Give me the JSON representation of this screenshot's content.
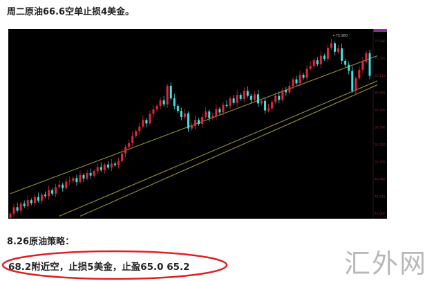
{
  "article": {
    "title": "周二原油66.6空单止损4美金。",
    "subtitle": "8.26原油策略：",
    "strategy": "68.2附近空，止损5美金，止盈65.0 65.2",
    "watermark": "汇外网"
  },
  "colors": {
    "background": "#000000",
    "up": "#e0283c",
    "down": "#3fe3e3",
    "trendline": "#8c8a2e",
    "axis_text": "#8a2040",
    "highlight": "#e02020"
  },
  "chart_data": {
    "type": "candlestick",
    "ylim": [
      40.0,
      77.5
    ],
    "yticks": [
      "75.980",
      "72.535",
      "69.110",
      "65.685",
      "62.260",
      "58.790",
      "55.320",
      "51.900",
      "48.440",
      "45.015",
      "41.600"
    ],
    "ytick_values": [
      75.98,
      72.535,
      69.11,
      65.685,
      62.26,
      58.79,
      55.32,
      51.9,
      48.44,
      45.015,
      41.6
    ],
    "peak_annotation": "75.980",
    "closes": [
      41.5,
      42.8,
      42.1,
      43.5,
      43.0,
      44.2,
      43.6,
      44.8,
      44.1,
      45.3,
      45.0,
      46.2,
      45.5,
      46.8,
      47.3,
      46.6,
      47.9,
      48.0,
      48.6,
      47.8,
      49.2,
      48.5,
      49.6,
      49.1,
      50.0,
      50.8,
      50.2,
      51.3,
      50.7,
      51.5,
      51.2,
      52.0,
      53.5,
      54.8,
      55.6,
      57.0,
      58.0,
      58.9,
      60.2,
      59.5,
      61.4,
      62.3,
      63.0,
      64.1,
      63.3,
      67.0,
      64.5,
      63.0,
      62.0,
      60.8,
      61.5,
      58.5,
      59.0,
      60.2,
      59.4,
      60.8,
      61.9,
      60.6,
      61.0,
      62.4,
      61.7,
      63.2,
      63.0,
      64.5,
      63.6,
      65.2,
      64.4,
      66.0,
      65.0,
      64.2,
      65.3,
      63.5,
      64.0,
      62.1,
      62.5,
      63.8,
      65.0,
      64.2,
      66.1,
      65.7,
      67.0,
      68.3,
      67.5,
      69.2,
      68.6,
      70.4,
      71.0,
      72.1,
      71.3,
      73.0,
      72.4,
      74.6,
      75.5,
      73.8,
      74.5,
      72.0,
      71.2,
      70.0,
      66.0,
      68.5,
      70.2,
      71.8,
      73.5,
      69.0
    ],
    "trendlines": [
      {
        "from": [
          0,
          45.5
        ],
        "to": [
          104,
          73.0
        ]
      },
      {
        "from": [
          14,
          41.0
        ],
        "to": [
          104,
          68.0
        ]
      },
      {
        "from": [
          20,
          41.0
        ],
        "to": [
          104,
          67.2
        ]
      }
    ]
  }
}
